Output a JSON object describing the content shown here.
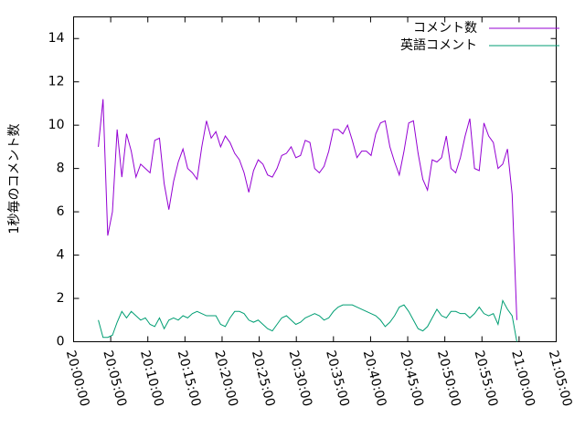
{
  "chart_data": {
    "type": "line",
    "ylabel": "1秒毎のコメント数",
    "x": [
      72200,
      72238,
      72276,
      72314,
      72352,
      72390,
      72428,
      72466,
      72504,
      72542,
      72580,
      72618,
      72656,
      72694,
      72732,
      72770,
      72808,
      72846,
      72884,
      72922,
      72960,
      72998,
      73036,
      73074,
      73112,
      73150,
      73188,
      73226,
      73264,
      73302,
      73340,
      73378,
      73416,
      73454,
      73492,
      73530,
      73568,
      73606,
      73644,
      73682,
      73720,
      73758,
      73796,
      73834,
      73872,
      73910,
      73948,
      73986,
      74024,
      74062,
      74100,
      74138,
      74176,
      74214,
      74252,
      74290,
      74328,
      74366,
      74404,
      74442,
      74480,
      74518,
      74556,
      74594,
      74632,
      74670,
      74708,
      74746,
      74784,
      74822,
      74860,
      74898,
      74936,
      74974,
      75012,
      75050,
      75088,
      75126,
      75164,
      75202,
      75240,
      75278,
      75316,
      75354,
      75392,
      75430,
      75468,
      75506,
      75544,
      75582
    ],
    "series": [
      {
        "name": "コメント数",
        "color": "#9400d3",
        "values": [
          9.0,
          11.2,
          4.9,
          6.0,
          9.8,
          7.6,
          9.6,
          8.8,
          7.6,
          8.2,
          8.0,
          7.8,
          9.3,
          9.4,
          7.3,
          6.1,
          7.4,
          8.3,
          8.9,
          8.0,
          7.8,
          7.5,
          9.0,
          10.2,
          9.4,
          9.7,
          9.0,
          9.5,
          9.2,
          8.7,
          8.4,
          7.8,
          6.9,
          7.9,
          8.4,
          8.2,
          7.7,
          7.6,
          8.0,
          8.6,
          8.7,
          9.0,
          8.5,
          8.6,
          9.3,
          9.2,
          8.0,
          7.8,
          8.1,
          8.8,
          9.8,
          9.8,
          9.6,
          10.0,
          9.3,
          8.5,
          8.8,
          8.8,
          8.6,
          9.6,
          10.1,
          10.2,
          9.0,
          8.3,
          7.7,
          8.8,
          10.1,
          10.2,
          8.7,
          7.5,
          7.0,
          8.4,
          8.3,
          8.5,
          9.5,
          8.0,
          7.8,
          8.5,
          9.5,
          10.3,
          8.0,
          7.9,
          10.1,
          9.5,
          9.2,
          8.0,
          8.2,
          8.9,
          6.8,
          1.0
        ]
      },
      {
        "name": "英語コメント",
        "color": "#009e73",
        "values": [
          1.0,
          0.2,
          0.2,
          0.3,
          0.9,
          1.4,
          1.1,
          1.4,
          1.2,
          1.0,
          1.1,
          0.8,
          0.7,
          1.1,
          0.6,
          1.0,
          1.1,
          1.0,
          1.2,
          1.1,
          1.3,
          1.4,
          1.3,
          1.2,
          1.2,
          1.2,
          0.8,
          0.7,
          1.1,
          1.4,
          1.4,
          1.3,
          1.0,
          0.9,
          1.0,
          0.8,
          0.6,
          0.5,
          0.8,
          1.1,
          1.2,
          1.0,
          0.8,
          0.9,
          1.1,
          1.2,
          1.3,
          1.2,
          1.0,
          1.1,
          1.4,
          1.6,
          1.7,
          1.7,
          1.7,
          1.6,
          1.5,
          1.4,
          1.3,
          1.2,
          1.0,
          0.7,
          0.9,
          1.2,
          1.6,
          1.7,
          1.4,
          1.0,
          0.6,
          0.5,
          0.7,
          1.1,
          1.5,
          1.2,
          1.1,
          1.4,
          1.4,
          1.3,
          1.3,
          1.1,
          1.3,
          1.6,
          1.3,
          1.2,
          1.3,
          0.8,
          1.9,
          1.5,
          1.2,
          0.0
        ]
      }
    ],
    "xlim": [
      72000,
      75900
    ],
    "xticks": [
      {
        "value": 72000,
        "label": "20:00:00"
      },
      {
        "value": 72300,
        "label": "20:05:00"
      },
      {
        "value": 72600,
        "label": "20:10:00"
      },
      {
        "value": 72900,
        "label": "20:15:00"
      },
      {
        "value": 73200,
        "label": "20:20:00"
      },
      {
        "value": 73500,
        "label": "20:25:00"
      },
      {
        "value": 73800,
        "label": "20:30:00"
      },
      {
        "value": 74100,
        "label": "20:35:00"
      },
      {
        "value": 74400,
        "label": "20:40:00"
      },
      {
        "value": 74700,
        "label": "20:45:00"
      },
      {
        "value": 75000,
        "label": "20:50:00"
      },
      {
        "value": 75300,
        "label": "20:55:00"
      },
      {
        "value": 75600,
        "label": "21:00:00"
      },
      {
        "value": 75900,
        "label": "21:05:00"
      }
    ],
    "ylim": [
      0,
      15
    ],
    "yticks": [
      0,
      2,
      4,
      6,
      8,
      10,
      12,
      14
    ],
    "legend": "top-right",
    "grid": false
  }
}
